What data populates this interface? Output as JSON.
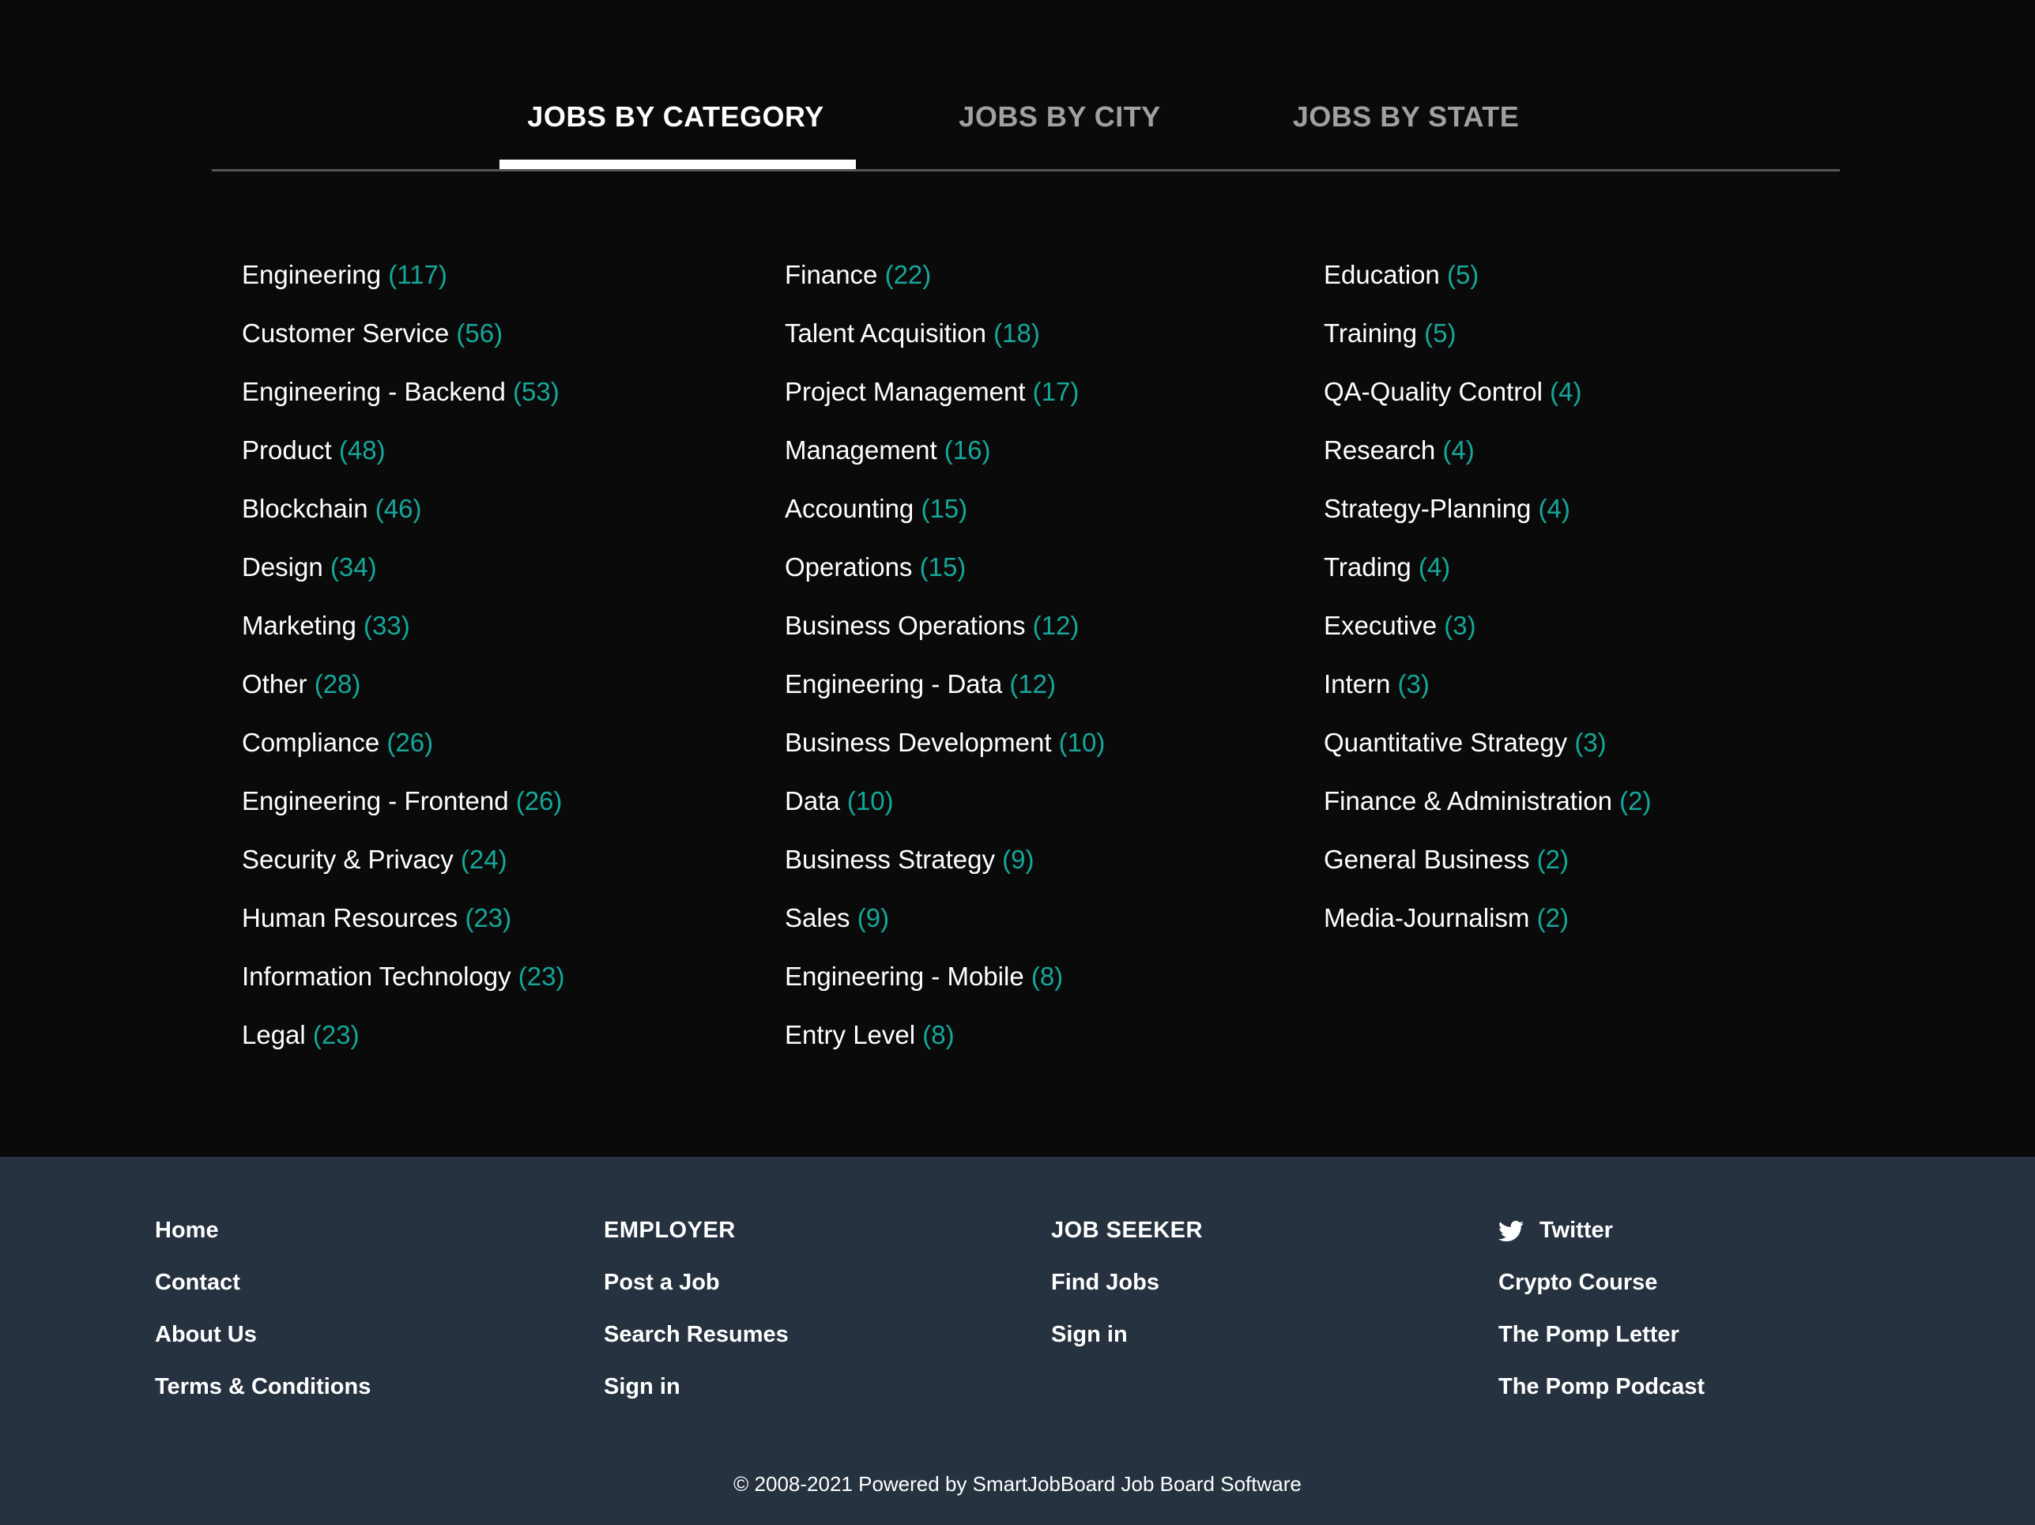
{
  "tabs": [
    {
      "label": "JOBS BY CATEGORY",
      "active": true
    },
    {
      "label": "JOBS BY CITY",
      "active": false
    },
    {
      "label": "JOBS BY STATE",
      "active": false
    }
  ],
  "categories": {
    "columns": [
      {
        "items": [
          {
            "name": "Engineering",
            "count": 117
          },
          {
            "name": "Customer Service",
            "count": 56
          },
          {
            "name": "Engineering - Backend",
            "count": 53
          },
          {
            "name": "Product",
            "count": 48
          },
          {
            "name": "Blockchain",
            "count": 46
          },
          {
            "name": "Design",
            "count": 34
          },
          {
            "name": "Marketing",
            "count": 33
          },
          {
            "name": "Other",
            "count": 28
          },
          {
            "name": "Compliance",
            "count": 26
          },
          {
            "name": "Engineering - Frontend",
            "count": 26
          },
          {
            "name": "Security & Privacy",
            "count": 24
          },
          {
            "name": "Human Resources",
            "count": 23
          },
          {
            "name": "Information Technology",
            "count": 23
          },
          {
            "name": "Legal",
            "count": 23
          }
        ]
      },
      {
        "items": [
          {
            "name": "Finance",
            "count": 22
          },
          {
            "name": "Talent Acquisition",
            "count": 18
          },
          {
            "name": "Project Management",
            "count": 17
          },
          {
            "name": "Management",
            "count": 16
          },
          {
            "name": "Accounting",
            "count": 15
          },
          {
            "name": "Operations",
            "count": 15
          },
          {
            "name": "Business Operations",
            "count": 12
          },
          {
            "name": "Engineering - Data",
            "count": 12
          },
          {
            "name": "Business Development",
            "count": 10
          },
          {
            "name": "Data",
            "count": 10
          },
          {
            "name": "Business Strategy",
            "count": 9
          },
          {
            "name": "Sales",
            "count": 9
          },
          {
            "name": "Engineering - Mobile",
            "count": 8
          },
          {
            "name": "Entry Level",
            "count": 8
          }
        ]
      },
      {
        "items": [
          {
            "name": "Education",
            "count": 5
          },
          {
            "name": "Training",
            "count": 5
          },
          {
            "name": "QA-Quality Control",
            "count": 4
          },
          {
            "name": "Research",
            "count": 4
          },
          {
            "name": "Strategy-Planning",
            "count": 4
          },
          {
            "name": "Trading",
            "count": 4
          },
          {
            "name": "Executive",
            "count": 3
          },
          {
            "name": "Intern",
            "count": 3
          },
          {
            "name": "Quantitative Strategy",
            "count": 3
          },
          {
            "name": "Finance & Administration",
            "count": 2
          },
          {
            "name": "General Business",
            "count": 2
          },
          {
            "name": "Media-Journalism",
            "count": 2
          }
        ]
      }
    ]
  },
  "footer": {
    "columns": [
      {
        "items": [
          {
            "label": "Home",
            "type": "link"
          },
          {
            "label": "Contact",
            "type": "link"
          },
          {
            "label": "About Us",
            "type": "link"
          },
          {
            "label": "Terms & Conditions",
            "type": "link"
          }
        ]
      },
      {
        "items": [
          {
            "label": "EMPLOYER",
            "type": "heading"
          },
          {
            "label": "Post a Job",
            "type": "link"
          },
          {
            "label": "Search Resumes",
            "type": "link"
          },
          {
            "label": "Sign in",
            "type": "link"
          }
        ]
      },
      {
        "items": [
          {
            "label": "JOB SEEKER",
            "type": "heading"
          },
          {
            "label": "Find Jobs",
            "type": "link"
          },
          {
            "label": "Sign in",
            "type": "link"
          }
        ]
      },
      {
        "items": [
          {
            "label": "Twitter",
            "type": "link",
            "icon": "twitter-icon"
          },
          {
            "label": "Crypto Course",
            "type": "link"
          },
          {
            "label": "The Pomp Letter",
            "type": "link"
          },
          {
            "label": "The Pomp Podcast",
            "type": "link"
          }
        ]
      }
    ],
    "copyright": "© 2008-2021 Powered by SmartJobBoard Job Board Software"
  },
  "colors": {
    "accent_teal": "#15a79a",
    "footer_bg": "#263240",
    "page_bg": "#0a0a0a",
    "inactive_tab": "#a0a0a0",
    "divider_gray": "#565656"
  }
}
